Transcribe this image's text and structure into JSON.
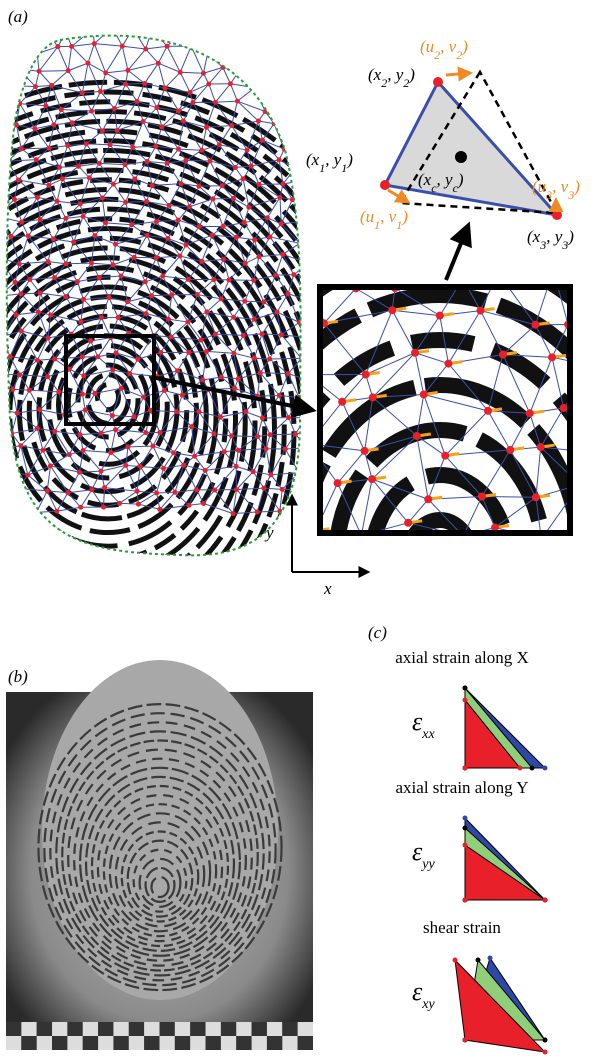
{
  "panel_a": {
    "label": "(a)",
    "vertices": {
      "p1": [
        "(x",
        "1",
        ", y",
        "1",
        ")"
      ],
      "p2": [
        "(x",
        "2",
        ", y",
        "2",
        ")"
      ],
      "p3": [
        "(x",
        "3",
        ", y",
        "3",
        ")"
      ],
      "pc": [
        "(x",
        "c",
        ", y",
        "c",
        ")"
      ]
    },
    "displacements": {
      "d1": [
        "(u",
        "1",
        ", v",
        "1",
        ")"
      ],
      "d2": [
        "(u",
        "2",
        ", v",
        "2",
        ")"
      ],
      "d3": [
        "(u",
        "3",
        ", v",
        "3",
        ")"
      ]
    },
    "axes": {
      "y": "y",
      "x": "x"
    }
  },
  "panel_b": {
    "label": "(b)"
  },
  "panel_c": {
    "label": "(c)",
    "strains": [
      {
        "heading": "axial strain along X",
        "symbol": [
          "ε",
          "xx"
        ]
      },
      {
        "heading": "axial strain along Y",
        "symbol": [
          "ε",
          "yy"
        ]
      },
      {
        "heading": "shear strain",
        "symbol": [
          "ε",
          "xy"
        ]
      }
    ]
  }
}
